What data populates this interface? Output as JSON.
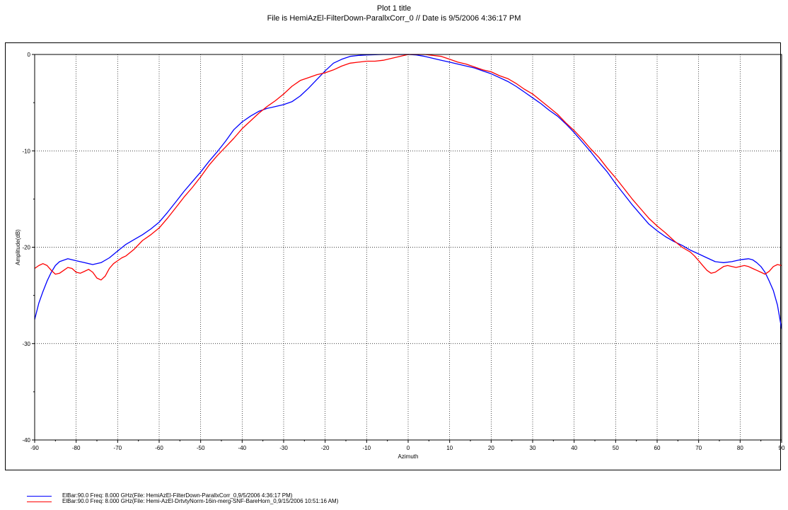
{
  "header": {
    "title": "Plot 1 title",
    "subtitle": "File is HemiAzEl-FilterDown-ParallxCorr_0 // Date is 9/5/2006 4:36:17 PM"
  },
  "colors": {
    "blue": "#0000ff",
    "red": "#ff0000",
    "grid": "#000000"
  },
  "chart_data": {
    "type": "line",
    "title": "Plot 1 title",
    "subtitle": "File is HemiAzEl-FilterDown-ParallxCorr_0 // Date is 9/5/2006 4:36:17 PM",
    "xlabel": "Azimuth",
    "ylabel": "Amplitude(dB)",
    "xlim": [
      -90,
      90
    ],
    "ylim": [
      -40,
      0
    ],
    "xticks": [
      -90,
      -80,
      -70,
      -60,
      -50,
      -40,
      -30,
      -20,
      -10,
      0,
      10,
      20,
      30,
      40,
      50,
      60,
      70,
      80,
      90
    ],
    "yticks": [
      -40,
      -30,
      -20,
      -10,
      0
    ],
    "xtick_labels": [
      "-90",
      "-80",
      "-70",
      "-60",
      "-50",
      "-40",
      "-30",
      "-20",
      "-10",
      "0",
      "10",
      "20",
      "30",
      "40",
      "50",
      "60",
      "70",
      "80",
      "90"
    ],
    "ytick_labels": [
      "-40",
      "-30",
      "-20",
      "-10",
      "0"
    ],
    "grid": true,
    "legend": "bottom-left",
    "series": [
      {
        "name": "ElBar:90.0 Freq: 8.000 GHz(File: HemiAzEl-FilterDown-ParallxCorr_0,9/5/2006 4:36:17 PM)",
        "color": "#0000ff",
        "x": [
          -90,
          -89,
          -88,
          -87,
          -86,
          -85,
          -84,
          -82,
          -80,
          -78,
          -76,
          -74,
          -72,
          -70,
          -68,
          -66,
          -64,
          -62,
          -60,
          -58,
          -56,
          -54,
          -52,
          -50,
          -48,
          -46,
          -44,
          -42,
          -40,
          -38,
          -36,
          -34,
          -32,
          -30,
          -28,
          -26,
          -24,
          -22,
          -20,
          -18,
          -16,
          -14,
          -12,
          -10,
          -8,
          -6,
          -4,
          -2,
          0,
          2,
          4,
          6,
          8,
          10,
          12,
          14,
          16,
          18,
          20,
          22,
          24,
          26,
          28,
          30,
          32,
          34,
          36,
          38,
          40,
          42,
          44,
          46,
          48,
          50,
          52,
          54,
          56,
          58,
          60,
          62,
          64,
          66,
          68,
          70,
          72,
          74,
          76,
          78,
          80,
          82,
          83,
          84,
          85,
          86,
          87,
          88,
          89,
          90
        ],
        "y": [
          -27.5,
          -25.8,
          -24.6,
          -23.5,
          -22.6,
          -21.9,
          -21.5,
          -21.2,
          -21.4,
          -21.6,
          -21.8,
          -21.6,
          -21.1,
          -20.4,
          -19.7,
          -19.2,
          -18.7,
          -18.1,
          -17.4,
          -16.4,
          -15.3,
          -14.2,
          -13.2,
          -12.2,
          -11.1,
          -10.1,
          -9.0,
          -7.8,
          -7.0,
          -6.4,
          -5.9,
          -5.6,
          -5.4,
          -5.2,
          -4.9,
          -4.3,
          -3.5,
          -2.6,
          -1.7,
          -0.9,
          -0.5,
          -0.2,
          -0.1,
          -0.05,
          -0.02,
          0,
          0,
          0,
          0,
          -0.05,
          -0.2,
          -0.4,
          -0.6,
          -0.8,
          -1.0,
          -1.2,
          -1.4,
          -1.7,
          -2.0,
          -2.4,
          -2.8,
          -3.3,
          -3.9,
          -4.5,
          -5.1,
          -5.8,
          -6.4,
          -7.2,
          -8.1,
          -9.1,
          -10.1,
          -11.2,
          -12.2,
          -13.4,
          -14.5,
          -15.6,
          -16.6,
          -17.6,
          -18.3,
          -18.9,
          -19.4,
          -19.8,
          -20.3,
          -20.7,
          -21.1,
          -21.5,
          -21.6,
          -21.5,
          -21.3,
          -21.2,
          -21.3,
          -21.6,
          -22.0,
          -22.6,
          -23.5,
          -24.5,
          -26.0,
          -28.5
        ]
      },
      {
        "name": "ElBar:90.0 Freq: 8.000 GHz(File: Hemi-AzEl-DrtvtyNorm-16in-merg-SNF-BareHorn_0,9/15/2006 10:51:16 AM)",
        "color": "#ff0000",
        "x": [
          -90,
          -89,
          -88,
          -87,
          -86,
          -85,
          -84,
          -83,
          -82,
          -81,
          -80,
          -79,
          -78,
          -77,
          -76,
          -75,
          -74,
          -73,
          -72,
          -71,
          -70,
          -69,
          -68,
          -66,
          -64,
          -62,
          -60,
          -58,
          -56,
          -54,
          -52,
          -50,
          -48,
          -46,
          -44,
          -42,
          -40,
          -38,
          -36,
          -34,
          -32,
          -30,
          -28,
          -26,
          -24,
          -22,
          -20,
          -18,
          -16,
          -14,
          -12,
          -10,
          -8,
          -6,
          -4,
          -2,
          0,
          2,
          4,
          6,
          8,
          10,
          12,
          14,
          16,
          18,
          20,
          22,
          24,
          26,
          28,
          30,
          32,
          34,
          36,
          38,
          40,
          42,
          44,
          46,
          48,
          50,
          52,
          54,
          56,
          58,
          60,
          62,
          64,
          66,
          68,
          69,
          70,
          71,
          72,
          73,
          74,
          75,
          76,
          77,
          78,
          79,
          80,
          81,
          82,
          83,
          84,
          85,
          86,
          87,
          88,
          89,
          90
        ],
        "y": [
          -22.2,
          -21.9,
          -21.7,
          -21.9,
          -22.4,
          -22.8,
          -22.7,
          -22.4,
          -22.1,
          -22.2,
          -22.6,
          -22.7,
          -22.5,
          -22.3,
          -22.6,
          -23.2,
          -23.4,
          -23.0,
          -22.2,
          -21.7,
          -21.4,
          -21.1,
          -20.9,
          -20.2,
          -19.3,
          -18.7,
          -18.0,
          -17.0,
          -15.9,
          -14.8,
          -13.8,
          -12.7,
          -11.5,
          -10.5,
          -9.6,
          -8.7,
          -7.7,
          -6.9,
          -6.1,
          -5.4,
          -4.8,
          -4.1,
          -3.3,
          -2.7,
          -2.4,
          -2.1,
          -1.9,
          -1.6,
          -1.2,
          -0.9,
          -0.8,
          -0.7,
          -0.7,
          -0.6,
          -0.4,
          -0.2,
          0,
          0,
          0,
          -0.1,
          -0.2,
          -0.5,
          -0.8,
          -1.0,
          -1.3,
          -1.6,
          -1.8,
          -2.2,
          -2.5,
          -3.0,
          -3.6,
          -4.1,
          -4.8,
          -5.5,
          -6.2,
          -7.1,
          -7.9,
          -8.8,
          -9.8,
          -10.7,
          -11.8,
          -12.8,
          -13.9,
          -15.0,
          -16.0,
          -17.0,
          -17.8,
          -18.5,
          -19.3,
          -20.0,
          -20.5,
          -20.9,
          -21.4,
          -21.9,
          -22.4,
          -22.7,
          -22.6,
          -22.3,
          -22.0,
          -21.9,
          -22.0,
          -22.1,
          -22.0,
          -21.9,
          -22.0,
          -22.2,
          -22.4,
          -22.6,
          -22.8,
          -22.5,
          -22.0,
          -21.8,
          -21.9
        ]
      }
    ]
  },
  "legend": {
    "items": [
      {
        "label": "ElBar:90.0 Freq: 8.000 GHz(File: HemiAzEl-FilterDown-ParallxCorr_0,9/5/2006 4:36:17 PM)",
        "color": "#0000ff"
      },
      {
        "label": "ElBar:90.0 Freq: 8.000 GHz(File: Hemi-AzEl-DrtvtyNorm-16in-merg-SNF-BareHorn_0,9/15/2006 10:51:16 AM)",
        "color": "#ff0000"
      }
    ]
  }
}
